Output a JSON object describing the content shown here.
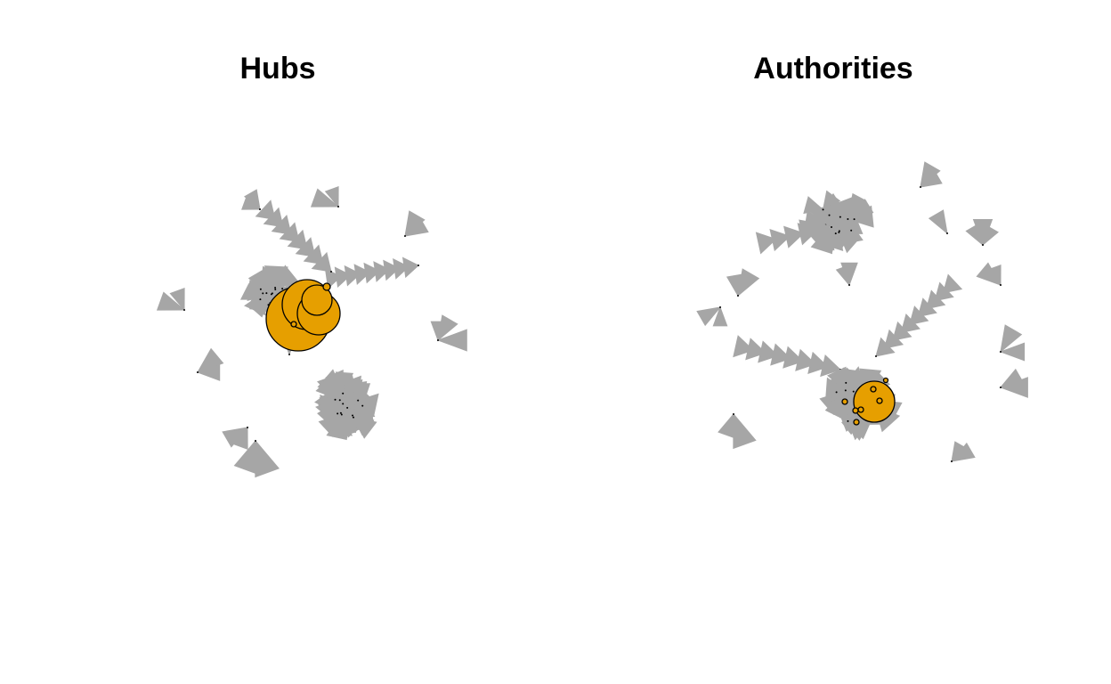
{
  "panels": [
    {
      "id": "hubs",
      "title": "Hubs"
    },
    {
      "id": "auth",
      "title": "Authorities"
    }
  ],
  "style": {
    "edge_color": "#a6a6a6",
    "node_fill": "#e69f00",
    "node_stroke": "#000000"
  }
}
